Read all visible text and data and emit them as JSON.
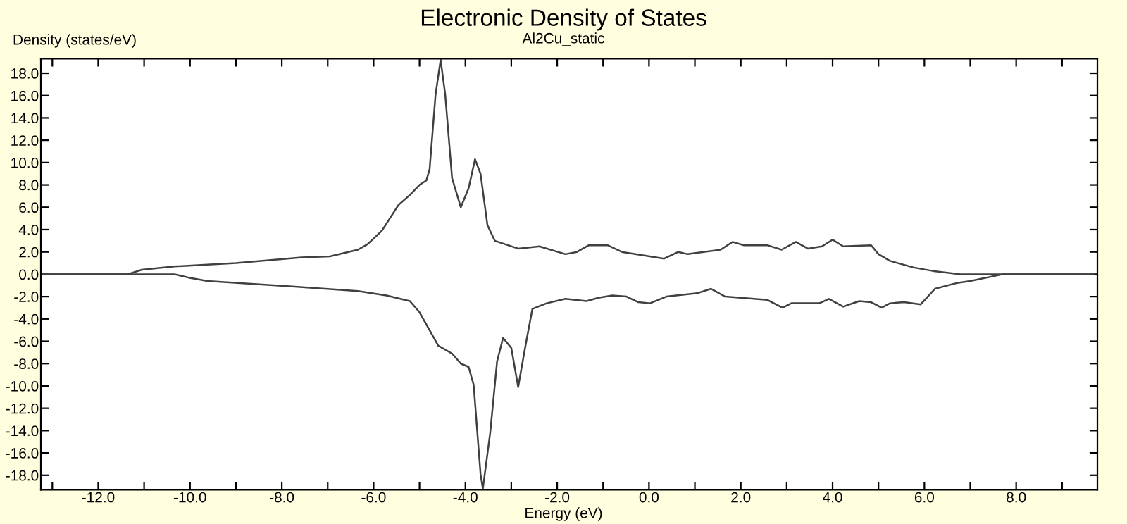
{
  "chart_data": {
    "type": "line",
    "title": "Electronic Density of States",
    "subtitle": "Al2Cu_static",
    "xlabel": "Energy (eV)",
    "ylabel": "Density (states/eV)",
    "series": [
      {
        "color": "#404040",
        "x": [
          -13.2,
          -11.36,
          -11.05,
          -10.34,
          -9.0,
          -7.57,
          -6.95,
          -6.34,
          -6.13,
          -5.82,
          -5.46,
          -5.21,
          -5.0,
          -4.85,
          -4.78,
          -4.65,
          -4.54,
          -4.44,
          -4.29,
          -4.1,
          -3.93,
          -3.79,
          -3.67,
          -3.52,
          -3.36,
          -2.85,
          -2.39,
          -1.82,
          -1.57,
          -1.31,
          -0.9,
          -0.59,
          0.33,
          0.64,
          0.84,
          1.56,
          1.82,
          2.07,
          2.58,
          2.89,
          3.2,
          3.46,
          3.77,
          4.0,
          4.23,
          4.84,
          5.0,
          5.25,
          5.77,
          6.18,
          6.79,
          7.71,
          9.7
        ],
        "values": [
          0,
          0,
          0.4,
          0.7,
          1.0,
          1.5,
          1.6,
          2.2,
          2.7,
          3.9,
          6.2,
          7.1,
          8.0,
          8.4,
          9.4,
          16.1,
          19.2,
          16.1,
          8.6,
          6.0,
          7.7,
          10.3,
          9.0,
          4.4,
          3.0,
          2.3,
          2.5,
          1.8,
          2.0,
          2.6,
          2.6,
          2.0,
          1.4,
          2.0,
          1.8,
          2.2,
          2.9,
          2.6,
          2.6,
          2.2,
          2.9,
          2.3,
          2.5,
          3.1,
          2.5,
          2.6,
          1.8,
          1.2,
          0.6,
          0.3,
          0.0,
          0,
          0
        ]
      },
      {
        "color": "#404040",
        "x": [
          -13.2,
          -10.34,
          -10.03,
          -9.62,
          -7.77,
          -6.34,
          -5.72,
          -5.21,
          -5.0,
          -4.59,
          -4.29,
          -4.1,
          -3.93,
          -3.82,
          -3.67,
          -3.62,
          -3.46,
          -3.31,
          -3.18,
          -3.0,
          -2.85,
          -2.7,
          -2.54,
          -2.23,
          -1.82,
          -1.36,
          -1.1,
          -0.8,
          -0.49,
          -0.23,
          0.02,
          0.38,
          1.05,
          1.35,
          1.66,
          2.58,
          2.91,
          3.1,
          3.71,
          3.92,
          4.23,
          4.58,
          4.84,
          5.07,
          5.25,
          5.56,
          5.92,
          6.23,
          6.69,
          7.0,
          7.71,
          9.7
        ],
        "values": [
          0,
          0,
          -0.3,
          -0.6,
          -1.1,
          -1.5,
          -1.9,
          -2.4,
          -3.4,
          -6.4,
          -7.1,
          -8.0,
          -8.3,
          -9.9,
          -17.9,
          -19.2,
          -14.2,
          -7.8,
          -5.7,
          -6.6,
          -10.1,
          -6.6,
          -3.1,
          -2.6,
          -2.2,
          -2.4,
          -2.1,
          -1.9,
          -2.0,
          -2.5,
          -2.6,
          -2.0,
          -1.7,
          -1.3,
          -2.0,
          -2.3,
          -3.0,
          -2.6,
          -2.6,
          -2.2,
          -2.9,
          -2.4,
          -2.5,
          -3.0,
          -2.6,
          -2.5,
          -2.7,
          -1.3,
          -0.8,
          -0.6,
          0,
          0
        ]
      }
    ],
    "xlim": [
      -13.25,
      9.77
    ],
    "ylim": [
      -19.3,
      19.3
    ],
    "xticks": [
      {
        "value": -13,
        "label": null
      },
      {
        "value": -12,
        "label": "-12.0"
      },
      {
        "value": -11,
        "label": null
      },
      {
        "value": -10,
        "label": "-10.0"
      },
      {
        "value": -9,
        "label": null
      },
      {
        "value": -8,
        "label": "-8.0"
      },
      {
        "value": -7,
        "label": null
      },
      {
        "value": -6,
        "label": "-6.0"
      },
      {
        "value": -5,
        "label": null
      },
      {
        "value": -4,
        "label": "-4.0"
      },
      {
        "value": -3,
        "label": null
      },
      {
        "value": -2,
        "label": "-2.0"
      },
      {
        "value": -1,
        "label": null
      },
      {
        "value": 0,
        "label": "0.0"
      },
      {
        "value": 1,
        "label": null
      },
      {
        "value": 2,
        "label": "2.0"
      },
      {
        "value": 3,
        "label": null
      },
      {
        "value": 4,
        "label": "4.0"
      },
      {
        "value": 5,
        "label": null
      },
      {
        "value": 6,
        "label": "6.0"
      },
      {
        "value": 7,
        "label": null
      },
      {
        "value": 8,
        "label": "8.0"
      },
      {
        "value": 9,
        "label": null
      }
    ],
    "yticks": [
      {
        "value": -18,
        "label": "-18.0"
      },
      {
        "value": -16,
        "label": "-16.0"
      },
      {
        "value": -14,
        "label": "-14.0"
      },
      {
        "value": -12,
        "label": "-12.0"
      },
      {
        "value": -10,
        "label": "-10.0"
      },
      {
        "value": -8,
        "label": "-8.0"
      },
      {
        "value": -6,
        "label": "-6.0"
      },
      {
        "value": -4,
        "label": "-4.0"
      },
      {
        "value": -2,
        "label": "-2.0"
      },
      {
        "value": 0,
        "label": "0.0"
      },
      {
        "value": 2,
        "label": "2.0"
      },
      {
        "value": 4,
        "label": "4.0"
      },
      {
        "value": 6,
        "label": "6.0"
      },
      {
        "value": 8,
        "label": "8.0"
      },
      {
        "value": 10,
        "label": "10.0"
      },
      {
        "value": 12,
        "label": "12.0"
      },
      {
        "value": 14,
        "label": "14.0"
      },
      {
        "value": 16,
        "label": "16.0"
      },
      {
        "value": 18,
        "label": "18.0"
      }
    ],
    "marker": "none",
    "line_style": "solid"
  }
}
